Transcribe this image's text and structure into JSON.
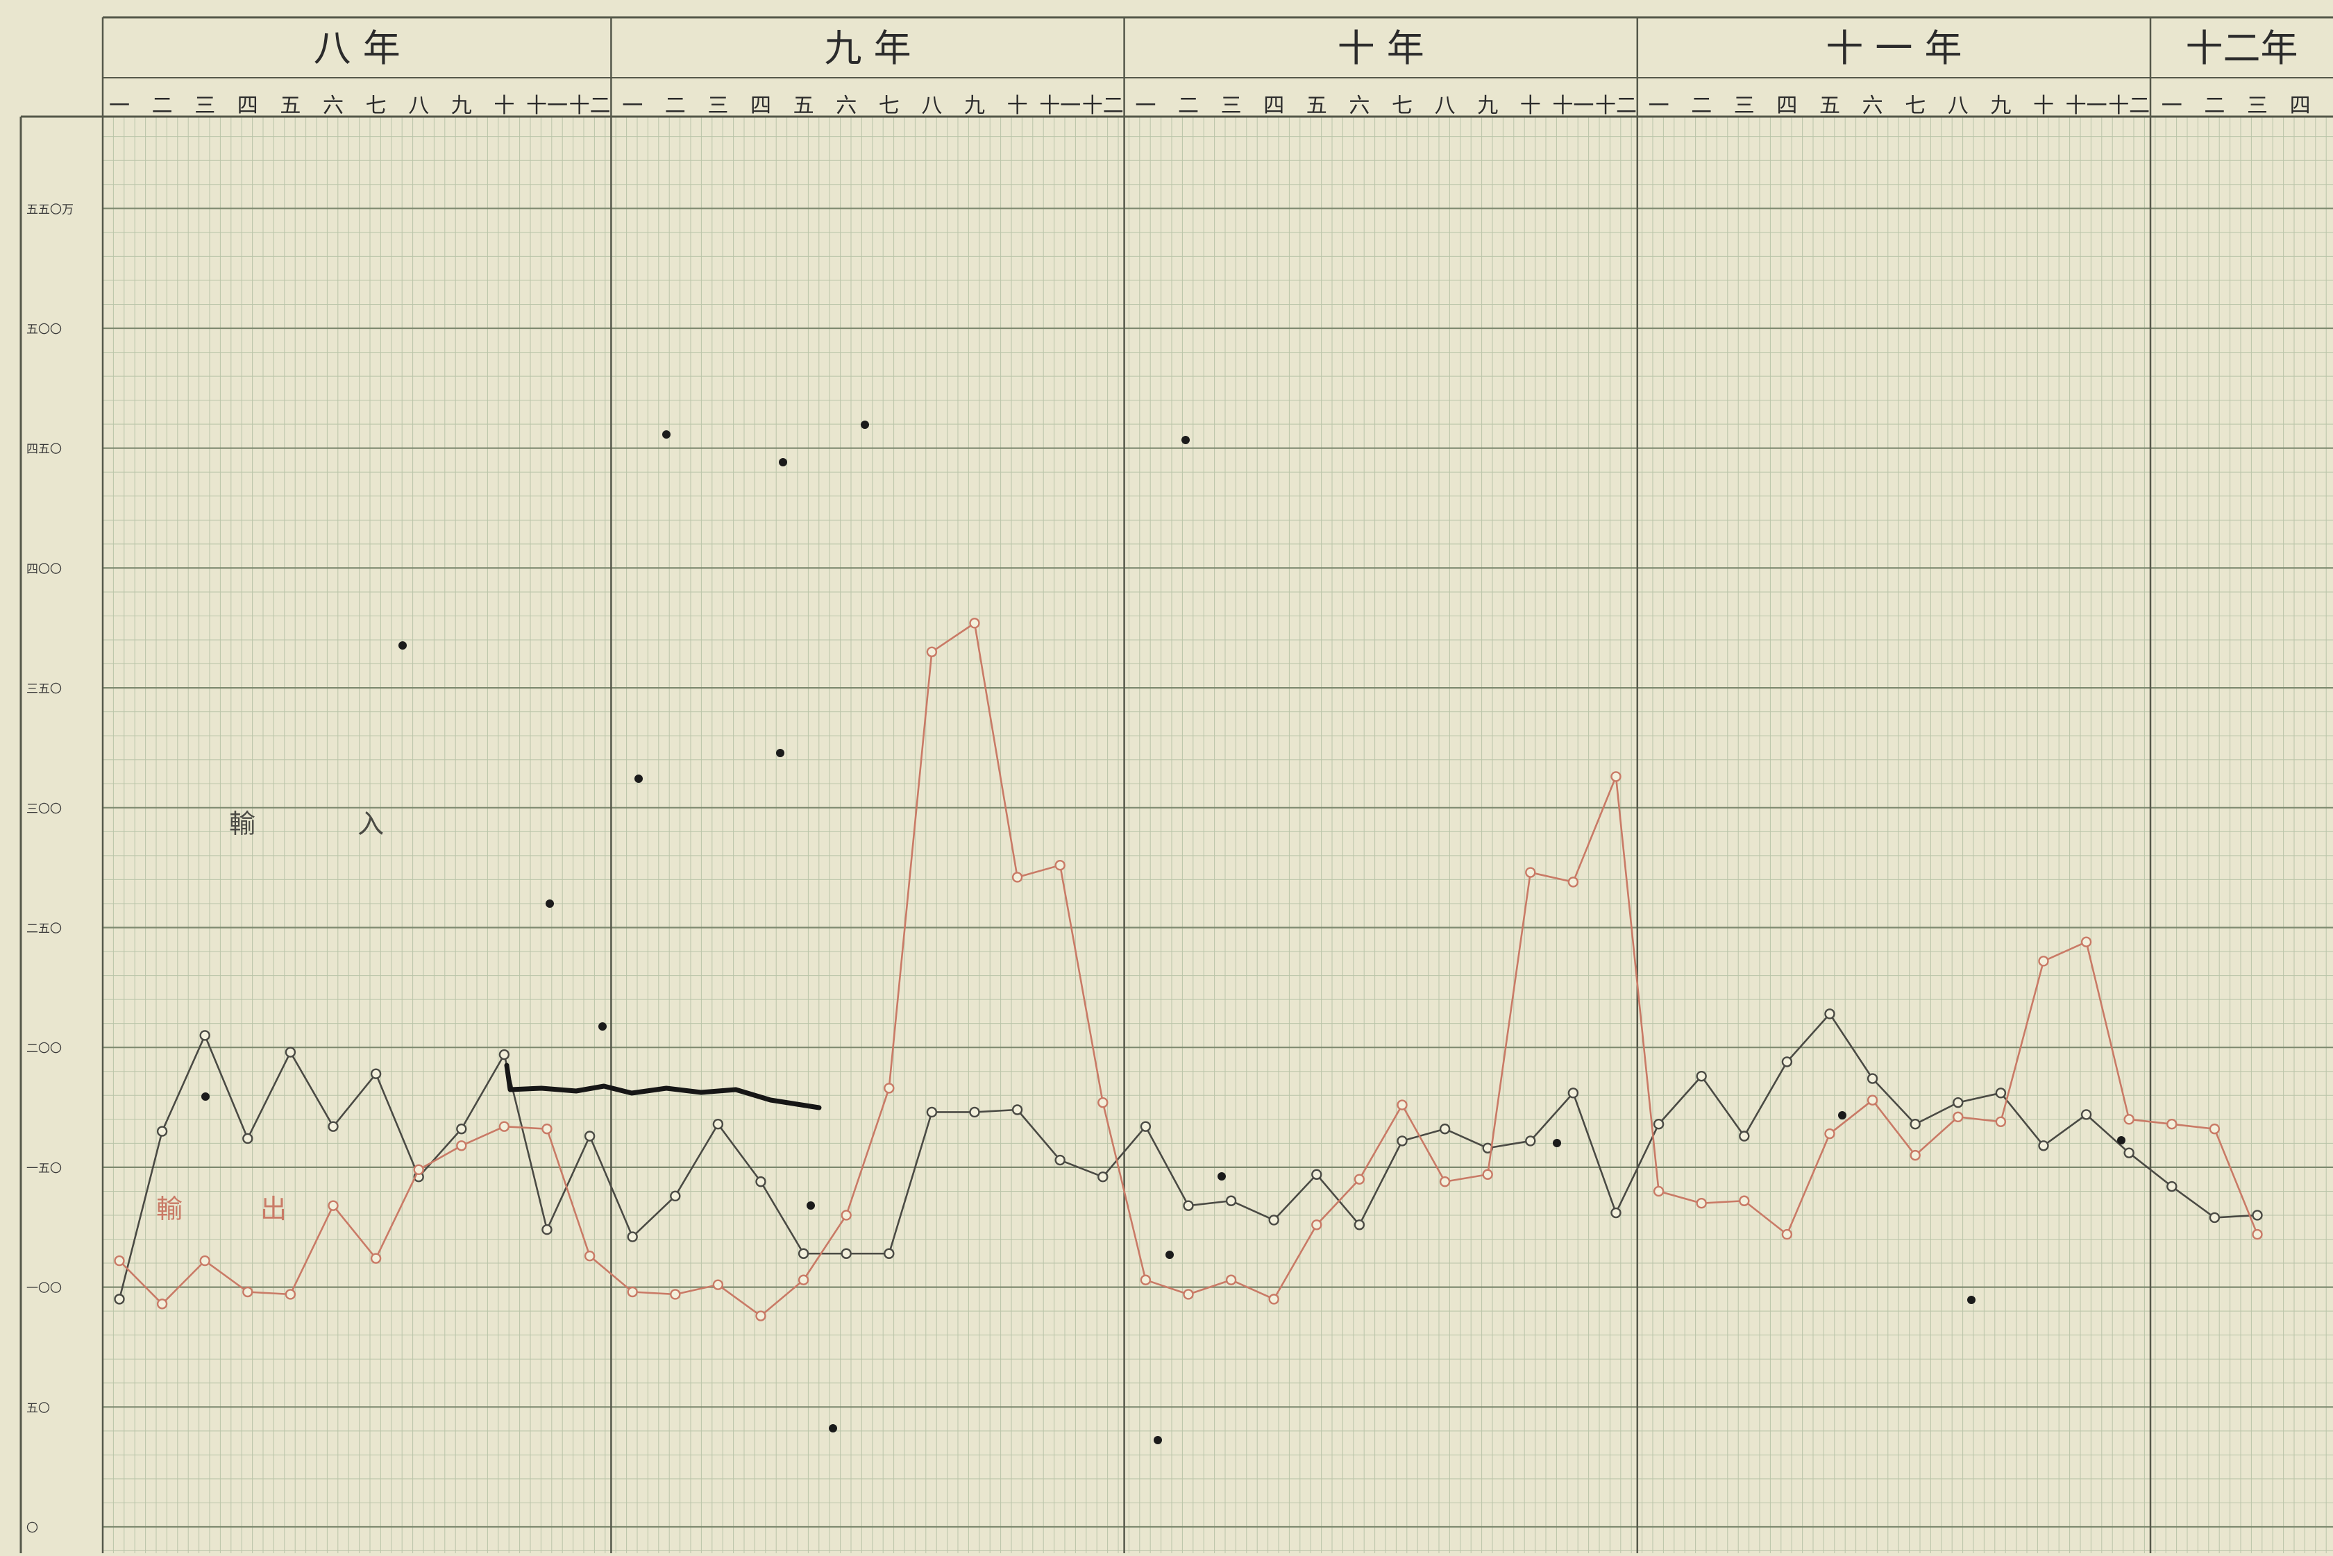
{
  "chart_data": {
    "type": "line",
    "title": "",
    "xlabel": "",
    "ylabel": "",
    "year_labels": [
      "八 年",
      "九 年",
      "十 年",
      "十 一 年",
      "十二年"
    ],
    "month_labels": [
      "一",
      "二",
      "三",
      "四",
      "五",
      "六",
      "七",
      "八",
      "九",
      "十",
      "十一",
      "十二"
    ],
    "months_per_year": [
      12,
      12,
      12,
      12,
      4
    ],
    "y_tick_labels": [
      "〇",
      "五〇",
      "一〇〇",
      "一五〇",
      "二〇〇",
      "二五〇",
      "三〇〇",
      "三五〇",
      "四〇〇",
      "四五〇",
      "五〇〇",
      "五五〇万"
    ],
    "y_ticks": [
      0,
      50,
      100,
      150,
      200,
      250,
      300,
      350,
      400,
      450,
      500,
      550
    ],
    "ylim": [
      0,
      550
    ],
    "grid": true,
    "series": [
      {
        "name": "輸入",
        "color": "#4a4a44",
        "values": [
          [
            0,
            95
          ],
          [
            1,
            165
          ],
          [
            2,
            205
          ],
          [
            3,
            162
          ],
          [
            4,
            198
          ],
          [
            5,
            167
          ],
          [
            6,
            189
          ],
          [
            7,
            146
          ],
          [
            8,
            166
          ],
          [
            9,
            197
          ],
          [
            10,
            124
          ],
          [
            11,
            163
          ],
          [
            12,
            121
          ],
          [
            13,
            138
          ],
          [
            14,
            168
          ],
          [
            15,
            144
          ],
          [
            16,
            114
          ],
          [
            17,
            114
          ],
          [
            18,
            114
          ],
          [
            19,
            173
          ],
          [
            20,
            173
          ],
          [
            21,
            174
          ],
          [
            22,
            153
          ],
          [
            23,
            146
          ],
          [
            24,
            167
          ],
          [
            25,
            134
          ],
          [
            26,
            136
          ],
          [
            27,
            128
          ],
          [
            28,
            147
          ],
          [
            29,
            126
          ],
          [
            30,
            161
          ],
          [
            31,
            166
          ],
          [
            32,
            158
          ],
          [
            33,
            161
          ],
          [
            34,
            181
          ],
          [
            35,
            131
          ],
          [
            36,
            168
          ],
          [
            37,
            188
          ],
          [
            38,
            163
          ],
          [
            39,
            194
          ],
          [
            40,
            214
          ],
          [
            41,
            187
          ],
          [
            42,
            168
          ],
          [
            43,
            177
          ],
          [
            44,
            181
          ],
          [
            45,
            159
          ],
          [
            46,
            172
          ],
          [
            47,
            156
          ],
          [
            48,
            142
          ],
          [
            49,
            129
          ],
          [
            50,
            130
          ]
        ]
      },
      {
        "name": "輸出",
        "color": "#c97a66",
        "values": [
          [
            0,
            111
          ],
          [
            1,
            93
          ],
          [
            2,
            111
          ],
          [
            3,
            98
          ],
          [
            4,
            97
          ],
          [
            5,
            134
          ],
          [
            6,
            112
          ],
          [
            7,
            149
          ],
          [
            8,
            159
          ],
          [
            9,
            167
          ],
          [
            10,
            166
          ],
          [
            11,
            113
          ],
          [
            12,
            98
          ],
          [
            13,
            97
          ],
          [
            14,
            101
          ],
          [
            15,
            88
          ],
          [
            16,
            103
          ],
          [
            17,
            130
          ],
          [
            18,
            183
          ],
          [
            19,
            365
          ],
          [
            20,
            377
          ],
          [
            21,
            271
          ],
          [
            22,
            276
          ],
          [
            23,
            177
          ],
          [
            24,
            103
          ],
          [
            25,
            97
          ],
          [
            26,
            103
          ],
          [
            27,
            95
          ],
          [
            28,
            126
          ],
          [
            29,
            145
          ],
          [
            30,
            176
          ],
          [
            31,
            144
          ],
          [
            32,
            147
          ],
          [
            33,
            273
          ],
          [
            34,
            269
          ],
          [
            35,
            313
          ],
          [
            36,
            140
          ],
          [
            37,
            135
          ],
          [
            38,
            136
          ],
          [
            39,
            122
          ],
          [
            40,
            164
          ],
          [
            41,
            178
          ],
          [
            42,
            155
          ],
          [
            43,
            171
          ],
          [
            44,
            169
          ],
          [
            45,
            236
          ],
          [
            46,
            244
          ],
          [
            47,
            170
          ],
          [
            48,
            168
          ],
          [
            49,
            166
          ],
          [
            50,
            122
          ]
        ]
      }
    ],
    "annotations": [
      {
        "text": "輸",
        "series": "輸入"
      },
      {
        "text": "入",
        "series": "輸入"
      },
      {
        "text": "輸",
        "series": "輸出"
      },
      {
        "text": "出",
        "series": "輸出"
      }
    ]
  }
}
